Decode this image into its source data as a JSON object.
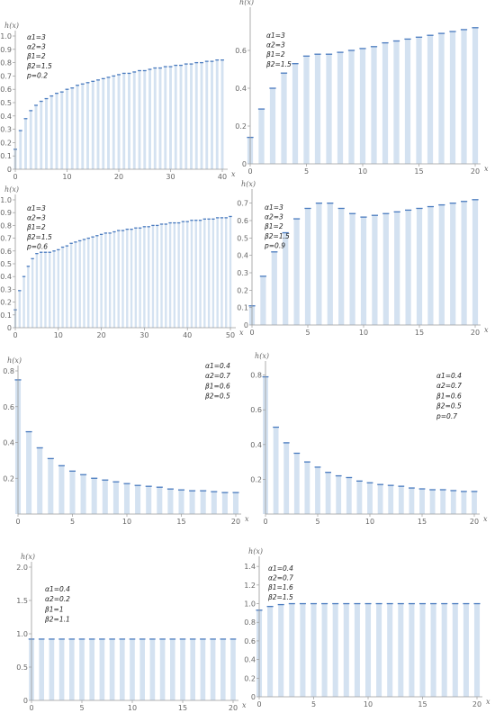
{
  "chart_data": [
    {
      "type": "bar",
      "ylabel": "h(x)",
      "xlabel": "x",
      "params": [
        "α1=3",
        "α2=3",
        "β1=2",
        "β2=1.5",
        "p=0.2"
      ],
      "x": [
        0,
        1,
        2,
        3,
        4,
        5,
        6,
        7,
        8,
        9,
        10,
        11,
        12,
        13,
        14,
        15,
        16,
        17,
        18,
        19,
        20,
        21,
        22,
        23,
        24,
        25,
        26,
        27,
        28,
        29,
        30,
        31,
        32,
        33,
        34,
        35,
        36,
        37,
        38,
        39,
        40
      ],
      "values": [
        0.15,
        0.29,
        0.38,
        0.44,
        0.48,
        0.51,
        0.53,
        0.55,
        0.57,
        0.58,
        0.6,
        0.61,
        0.63,
        0.64,
        0.65,
        0.66,
        0.67,
        0.68,
        0.69,
        0.7,
        0.71,
        0.72,
        0.72,
        0.73,
        0.74,
        0.74,
        0.75,
        0.76,
        0.76,
        0.77,
        0.77,
        0.78,
        0.78,
        0.79,
        0.79,
        0.8,
        0.8,
        0.81,
        0.81,
        0.82,
        0.82
      ],
      "xlim": [
        0,
        40
      ],
      "ylim": [
        0,
        1.0
      ],
      "xticks": [
        0,
        10,
        20,
        30,
        40
      ],
      "yticks": [
        0,
        0.1,
        0.2,
        0.3,
        0.4,
        0.5,
        0.6,
        0.7,
        0.8,
        0.9,
        1.0
      ],
      "ytick_labels": [
        "0",
        "0.1",
        "0.2",
        "0.3",
        "0.4",
        "0.5",
        "0.6",
        "0.7",
        "0.8",
        "0.9",
        "1.0"
      ]
    },
    {
      "type": "bar",
      "ylabel": "h(x)",
      "xlabel": "x",
      "params": [
        "α1=3",
        "α2=3",
        "β1=2",
        "β2=1.5"
      ],
      "x": [
        0,
        1,
        2,
        3,
        4,
        5,
        6,
        7,
        8,
        9,
        10,
        11,
        12,
        13,
        14,
        15,
        16,
        17,
        18,
        19,
        20
      ],
      "values": [
        0.14,
        0.29,
        0.4,
        0.48,
        0.53,
        0.57,
        0.58,
        0.58,
        0.59,
        0.6,
        0.61,
        0.62,
        0.64,
        0.65,
        0.66,
        0.67,
        0.68,
        0.69,
        0.7,
        0.71,
        0.72
      ],
      "xlim": [
        0,
        20
      ],
      "ylim": [
        0,
        0.8
      ],
      "xticks": [
        0,
        5,
        10,
        15,
        20
      ],
      "yticks": [
        0,
        0.2,
        0.4,
        0.6
      ],
      "ytick_labels": [
        "0",
        "0.2",
        "0.4",
        "0.6"
      ]
    },
    {
      "type": "bar",
      "ylabel": "h(x)",
      "xlabel": "x",
      "params": [
        "α1=3",
        "α2=3",
        "β1=2",
        "β2=1.5",
        "p=0.6"
      ],
      "x": [
        0,
        1,
        2,
        3,
        4,
        5,
        6,
        7,
        8,
        9,
        10,
        11,
        12,
        13,
        14,
        15,
        16,
        17,
        18,
        19,
        20,
        21,
        22,
        23,
        24,
        25,
        26,
        27,
        28,
        29,
        30,
        31,
        32,
        33,
        34,
        35,
        36,
        37,
        38,
        39,
        40,
        41,
        42,
        43,
        44,
        45,
        46,
        47,
        48,
        49,
        50
      ],
      "values": [
        0.14,
        0.29,
        0.4,
        0.48,
        0.54,
        0.58,
        0.59,
        0.59,
        0.59,
        0.6,
        0.61,
        0.63,
        0.64,
        0.66,
        0.67,
        0.68,
        0.69,
        0.7,
        0.71,
        0.72,
        0.73,
        0.74,
        0.74,
        0.75,
        0.76,
        0.76,
        0.77,
        0.77,
        0.78,
        0.78,
        0.79,
        0.79,
        0.8,
        0.8,
        0.81,
        0.81,
        0.82,
        0.82,
        0.82,
        0.83,
        0.83,
        0.84,
        0.84,
        0.84,
        0.85,
        0.85,
        0.85,
        0.86,
        0.86,
        0.86,
        0.87
      ],
      "xlim": [
        0,
        50
      ],
      "ylim": [
        0,
        1.0
      ],
      "xticks": [
        0,
        10,
        20,
        30,
        40,
        50
      ],
      "yticks": [
        0,
        0.1,
        0.2,
        0.3,
        0.4,
        0.5,
        0.6,
        0.7,
        0.8,
        0.9,
        1.0
      ],
      "ytick_labels": [
        "0",
        "0.1",
        "0.2",
        "0.3",
        "0.4",
        "0.5",
        "0.6",
        "0.7",
        "0.8",
        "0.9",
        "1.0"
      ]
    },
    {
      "type": "bar",
      "ylabel": "h(x)",
      "xlabel": "x",
      "params": [
        "α1=3",
        "α2=3",
        "β1=2",
        "β2=1.5",
        "p=0.9"
      ],
      "x": [
        0,
        1,
        2,
        3,
        4,
        5,
        6,
        7,
        8,
        9,
        10,
        11,
        12,
        13,
        14,
        15,
        16,
        17,
        18,
        19,
        20
      ],
      "values": [
        0.11,
        0.28,
        0.42,
        0.53,
        0.61,
        0.67,
        0.7,
        0.7,
        0.67,
        0.64,
        0.62,
        0.63,
        0.64,
        0.65,
        0.66,
        0.67,
        0.68,
        0.69,
        0.7,
        0.71,
        0.72
      ],
      "xlim": [
        0,
        20
      ],
      "ylim": [
        0,
        0.75
      ],
      "xticks": [
        0,
        5,
        10,
        15,
        20
      ],
      "yticks": [
        0,
        0.1,
        0.2,
        0.3,
        0.4,
        0.5,
        0.6,
        0.7
      ],
      "ytick_labels": [
        "0",
        "0.1",
        "0.2",
        "0.3",
        "0.4",
        "0.5",
        "0.6",
        "0.7"
      ]
    },
    {
      "type": "bar",
      "ylabel": "h(x)",
      "xlabel": "x",
      "params": [
        "α1=0.4",
        "α2=0.7",
        "β1=0.6",
        "β2=0.5"
      ],
      "x": [
        0,
        1,
        2,
        3,
        4,
        5,
        6,
        7,
        8,
        9,
        10,
        11,
        12,
        13,
        14,
        15,
        16,
        17,
        18,
        19,
        20
      ],
      "values": [
        0.75,
        0.46,
        0.37,
        0.31,
        0.27,
        0.24,
        0.22,
        0.2,
        0.19,
        0.18,
        0.17,
        0.16,
        0.155,
        0.15,
        0.14,
        0.135,
        0.13,
        0.13,
        0.125,
        0.12,
        0.12
      ],
      "xlim": [
        0,
        20
      ],
      "ylim": [
        0,
        0.8
      ],
      "xticks": [
        0,
        5,
        10,
        15,
        20
      ],
      "yticks": [
        0.2,
        0.4,
        0.6,
        0.8
      ],
      "ytick_labels": [
        "0.2",
        "0.4",
        "0.6",
        "0.8"
      ]
    },
    {
      "type": "bar",
      "ylabel": "h(x)",
      "xlabel": "x",
      "params": [
        "α1=0.4",
        "α2=0.7",
        "β1=0.6",
        "β2=0.5",
        "p=0.7"
      ],
      "x": [
        0,
        1,
        2,
        3,
        4,
        5,
        6,
        7,
        8,
        9,
        10,
        11,
        12,
        13,
        14,
        15,
        16,
        17,
        18,
        19,
        20
      ],
      "values": [
        0.79,
        0.5,
        0.41,
        0.35,
        0.3,
        0.27,
        0.24,
        0.22,
        0.21,
        0.19,
        0.18,
        0.17,
        0.165,
        0.16,
        0.15,
        0.145,
        0.14,
        0.14,
        0.135,
        0.13,
        0.13
      ],
      "xlim": [
        0,
        20
      ],
      "ylim": [
        0,
        0.85
      ],
      "xticks": [
        0,
        5,
        10,
        15,
        20
      ],
      "yticks": [
        0.2,
        0.4,
        0.6,
        0.8
      ],
      "ytick_labels": [
        "0.2",
        "0.4",
        "0.6",
        "0.8"
      ]
    },
    {
      "type": "bar",
      "ylabel": "h(x)",
      "xlabel": "x",
      "params": [
        "α1=0.4",
        "α2=0.2",
        "β1=1",
        "β2=1.1"
      ],
      "x": [
        0,
        1,
        2,
        3,
        4,
        5,
        6,
        7,
        8,
        9,
        10,
        11,
        12,
        13,
        14,
        15,
        16,
        17,
        18,
        19,
        20
      ],
      "values": [
        0.92,
        0.92,
        0.92,
        0.92,
        0.92,
        0.92,
        0.92,
        0.92,
        0.92,
        0.92,
        0.92,
        0.92,
        0.92,
        0.92,
        0.92,
        0.92,
        0.92,
        0.92,
        0.92,
        0.92,
        0.92
      ],
      "xlim": [
        0,
        20
      ],
      "ylim": [
        0,
        2.0
      ],
      "xticks": [
        0,
        5,
        10,
        15,
        20
      ],
      "yticks": [
        0,
        0.5,
        1.0,
        1.5,
        2.0
      ],
      "ytick_labels": [
        "0",
        "0.5",
        "1.0",
        "1.5",
        "2.0"
      ]
    },
    {
      "type": "bar",
      "ylabel": "h(x)",
      "xlabel": "x",
      "params": [
        "α1=0.4",
        "α2=0.7",
        "β1=1.6",
        "β2=1.5"
      ],
      "x": [
        0,
        1,
        2,
        3,
        4,
        5,
        6,
        7,
        8,
        9,
        10,
        11,
        12,
        13,
        14,
        15,
        16,
        17,
        18,
        19,
        20
      ],
      "values": [
        0.93,
        0.97,
        0.99,
        1.0,
        1.0,
        1.0,
        1.0,
        1.0,
        1.0,
        1.0,
        1.0,
        1.0,
        1.0,
        1.0,
        1.0,
        1.0,
        1.0,
        1.0,
        1.0,
        1.0,
        1.0
      ],
      "xlim": [
        0,
        20
      ],
      "ylim": [
        0,
        1.45
      ],
      "xticks": [
        0,
        5,
        10,
        15,
        20
      ],
      "yticks": [
        0,
        0.2,
        0.4,
        0.6,
        0.8,
        1.0,
        1.2,
        1.4
      ],
      "ytick_labels": [
        "0",
        "0.2",
        "0.4",
        "0.6",
        "0.8",
        "1.0",
        "1.2",
        "1.4"
      ]
    }
  ]
}
